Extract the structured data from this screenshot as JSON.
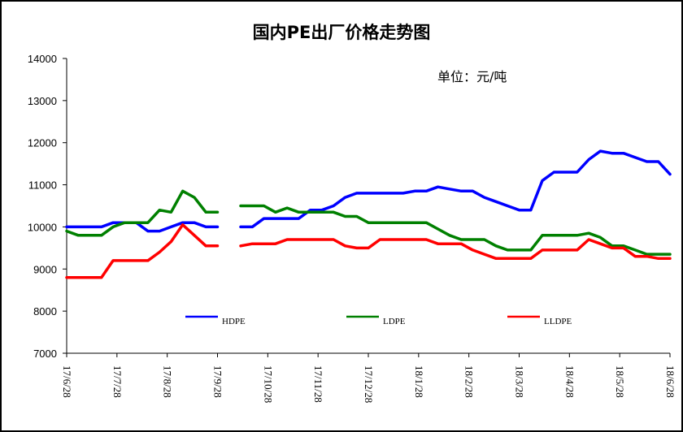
{
  "chart_data": {
    "type": "line",
    "title": "国内PE出厂价格走势图",
    "unit_label": "单位：元/吨",
    "ylim": [
      7000,
      14000
    ],
    "y_ticks": [
      7000,
      8000,
      9000,
      10000,
      11000,
      12000,
      13000,
      14000
    ],
    "x_tick_labels": [
      "17/6/28",
      "17/7/28",
      "17/8/28",
      "17/9/28",
      "17/10/28",
      "17/11/28",
      "17/12/28",
      "18/1/28",
      "18/2/28",
      "18/3/28",
      "18/4/28",
      "18/5/28",
      "18/6/28"
    ],
    "grid": false,
    "legend_position": "bottom-inside",
    "series": [
      {
        "name": "HDPE",
        "color": "#0000ff",
        "values": [
          10000,
          10000,
          10000,
          10000,
          10100,
          10100,
          10100,
          9900,
          9900,
          10000,
          10100,
          10100,
          10000,
          10000,
          null,
          10000,
          10000,
          10200,
          10200,
          10200,
          10200,
          10400,
          10400,
          10500,
          10700,
          10800,
          10800,
          10800,
          10800,
          10800,
          10850,
          10850,
          10950,
          10900,
          10850,
          10850,
          10700,
          10600,
          10500,
          10400,
          10400,
          11100,
          11300,
          11300,
          11300,
          11600,
          11800,
          11750,
          11750,
          11650,
          11550,
          11550,
          11250
        ]
      },
      {
        "name": "LDPE",
        "color": "#008000",
        "values": [
          9900,
          9800,
          9800,
          9800,
          10000,
          10100,
          10100,
          10100,
          10400,
          10350,
          10850,
          10700,
          10350,
          10350,
          null,
          10500,
          10500,
          10500,
          10350,
          10450,
          10350,
          10350,
          10350,
          10350,
          10250,
          10250,
          10100,
          10100,
          10100,
          10100,
          10100,
          10100,
          9950,
          9800,
          9700,
          9700,
          9700,
          9550,
          9450,
          9450,
          9450,
          9800,
          9800,
          9800,
          9800,
          9850,
          9750,
          9550,
          9550,
          9450,
          9350,
          9350,
          9350
        ]
      },
      {
        "name": "LLDPE",
        "color": "#ff0000",
        "values": [
          8800,
          8800,
          8800,
          8800,
          9200,
          9200,
          9200,
          9200,
          9400,
          9650,
          10050,
          9800,
          9550,
          9550,
          null,
          9550,
          9600,
          9600,
          9600,
          9700,
          9700,
          9700,
          9700,
          9700,
          9550,
          9500,
          9500,
          9700,
          9700,
          9700,
          9700,
          9700,
          9600,
          9600,
          9600,
          9450,
          9350,
          9250,
          9250,
          9250,
          9250,
          9450,
          9450,
          9450,
          9450,
          9700,
          9600,
          9500,
          9500,
          9300,
          9300,
          9250,
          9250
        ]
      }
    ]
  }
}
